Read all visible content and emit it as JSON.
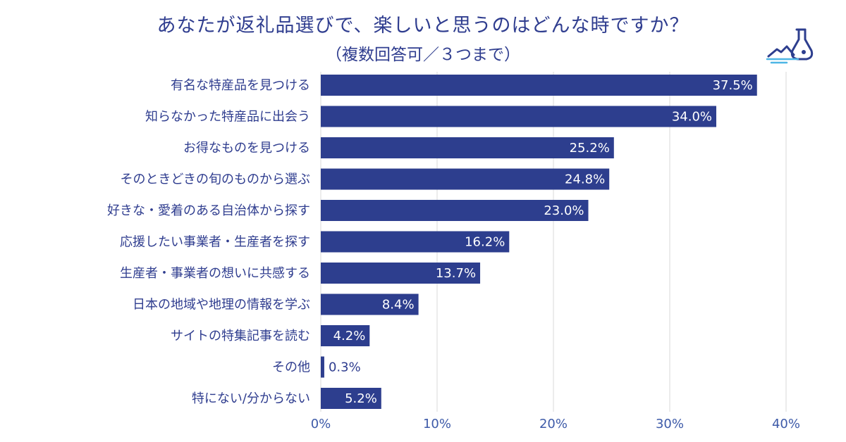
{
  "title": "あなたが返礼品選びで、楽しいと思うのはどんな時ですか？",
  "subtitle": "（複数回答可／３つまで）",
  "logo_icon": "flask-landscape-icon",
  "colors": {
    "bar": "#2d3e8e",
    "text": "#2f3d8f",
    "grid": "#d9d9d9",
    "tick": "#3d5aa8"
  },
  "chart_data": {
    "type": "bar",
    "orientation": "horizontal",
    "categories": [
      "有名な特産品を見つける",
      "知らなかった特産品に出会う",
      "お得なものを見つける",
      "そのときどきの旬のものから選ぶ",
      "好きな・愛着のある自治体から探す",
      "応援したい事業者・生産者を探す",
      "生産者・事業者の想いに共感する",
      "日本の地域や地理の情報を学ぶ",
      "サイトの特集記事を読む",
      "その他",
      "特にない/分からない"
    ],
    "values": [
      37.5,
      34.0,
      25.2,
      24.8,
      23.0,
      16.2,
      13.7,
      8.4,
      4.2,
      0.3,
      5.2
    ],
    "value_labels": [
      "37.5%",
      "34.0%",
      "25.2%",
      "24.8%",
      "23.0%",
      "16.2%",
      "13.7%",
      "8.4%",
      "4.2%",
      "0.3%",
      "5.2%"
    ],
    "xlim": [
      0,
      40
    ],
    "xticks": [
      0,
      10,
      20,
      30,
      40
    ],
    "xtick_labels": [
      "0%",
      "10%",
      "20%",
      "30%",
      "40%"
    ],
    "grid": true
  }
}
